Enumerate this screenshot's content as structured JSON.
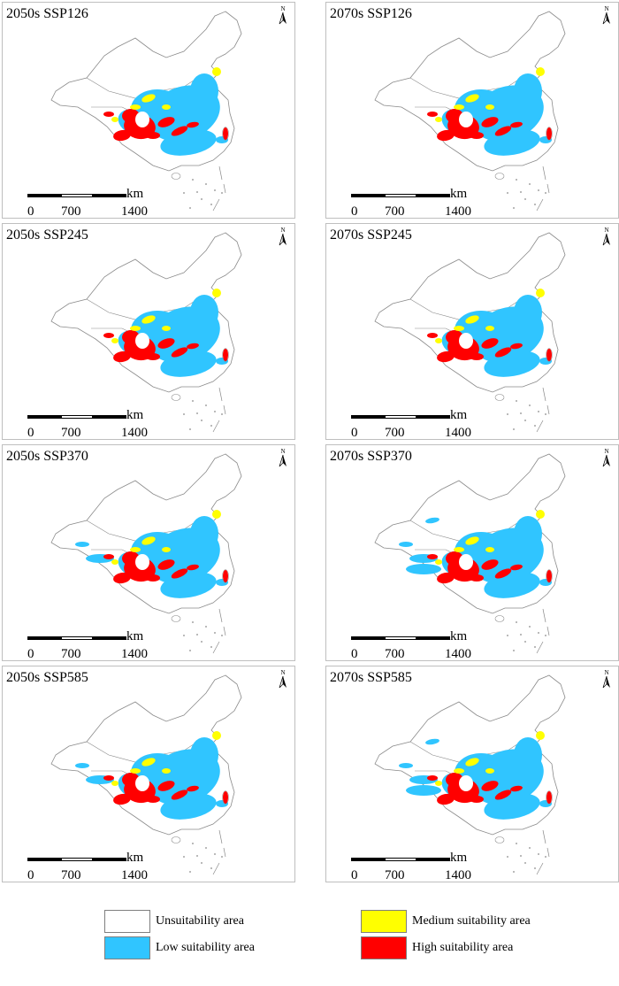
{
  "colors": {
    "unsuitable": "#ffffff",
    "low": "#30c5ff",
    "medium": "#ffff00",
    "high": "#ff0000",
    "outline": "#8a8a8a"
  },
  "scale_bar": {
    "ticks": [
      "0",
      "700",
      "1400"
    ],
    "unit": "km"
  },
  "north_label": "N",
  "panels": [
    {
      "title": "2050s SSP126"
    },
    {
      "title": "2070s SSP126"
    },
    {
      "title": "2050s SSP245"
    },
    {
      "title": "2070s SSP245"
    },
    {
      "title": "2050s SSP370"
    },
    {
      "title": "2070s SSP370"
    },
    {
      "title": "2050s SSP585"
    },
    {
      "title": "2070s SSP585"
    }
  ],
  "legend": [
    {
      "label": "Unsuitability area",
      "color": "#ffffff"
    },
    {
      "label": "Medium suitability area",
      "color": "#ffff00"
    },
    {
      "label": "Low suitability area",
      "color": "#30c5ff"
    },
    {
      "label": "High suitability area",
      "color": "#ff0000"
    }
  ]
}
